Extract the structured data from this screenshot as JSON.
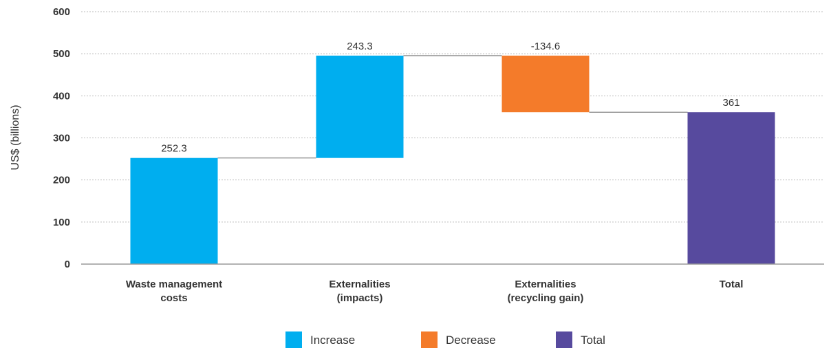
{
  "chart_data": {
    "type": "waterfall",
    "title": "",
    "xlabel": "",
    "ylabel": "US$ (billions)",
    "ylim": [
      0,
      600
    ],
    "yticks": [
      0,
      100,
      200,
      300,
      400,
      500,
      600
    ],
    "grid": true,
    "legend_position": "bottom",
    "categories": [
      [
        "Waste management",
        "costs"
      ],
      [
        "Externalities",
        "(impacts)"
      ],
      [
        "Externalities",
        "(recycling gain)"
      ],
      [
        "Total"
      ]
    ],
    "bars": [
      {
        "kind": "increase",
        "base": 0,
        "value": 252.3,
        "label": "252.3"
      },
      {
        "kind": "increase",
        "base": 252.3,
        "value": 243.3,
        "label": "243.3"
      },
      {
        "kind": "decrease",
        "base": 495.6,
        "value": -134.6,
        "label": "-134.6"
      },
      {
        "kind": "total",
        "base": 0,
        "value": 361,
        "label": "361"
      }
    ],
    "legend": [
      {
        "kind": "increase",
        "label": "Increase"
      },
      {
        "kind": "decrease",
        "label": "Decrease"
      },
      {
        "kind": "total",
        "label": "Total"
      }
    ],
    "colors": {
      "increase": "#00AEEF",
      "decrease": "#F47B2A",
      "total": "#574A9E",
      "connector": "#999999",
      "grid": "#BBBBBB"
    }
  }
}
